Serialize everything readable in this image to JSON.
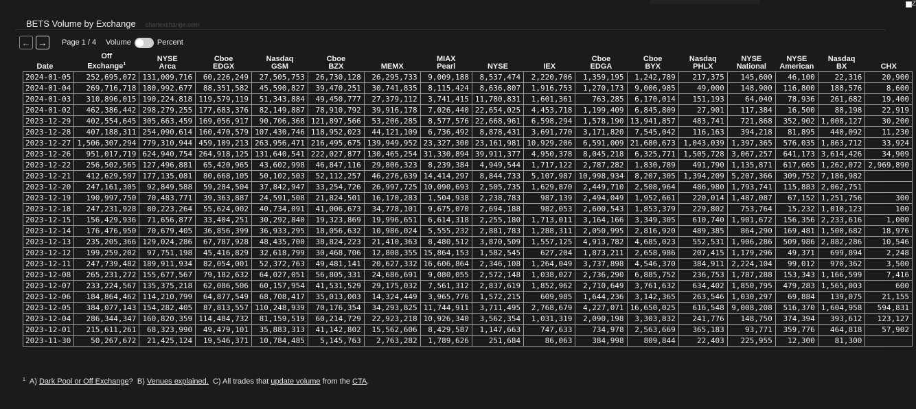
{
  "title": "BETS Volume by Exchange",
  "source": "chartexchange.com",
  "corner_label": "Z",
  "controls": {
    "page_label": "Page 1 / 4",
    "volume_label": "Volume",
    "percent_label": "Percent"
  },
  "columns": [
    {
      "l1": "",
      "l2": "Date"
    },
    {
      "l1": "Off",
      "l2": "Exchange",
      "sup": "1"
    },
    {
      "l1": "NYSE",
      "l2": "Arca"
    },
    {
      "l1": "Cboe",
      "l2": "EDGX"
    },
    {
      "l1": "Nasdaq",
      "l2": "GSM"
    },
    {
      "l1": "Cboe",
      "l2": "BZX"
    },
    {
      "l1": "",
      "l2": "MEMX"
    },
    {
      "l1": "MIAX",
      "l2": "Pearl"
    },
    {
      "l1": "",
      "l2": "NYSE"
    },
    {
      "l1": "",
      "l2": "IEX"
    },
    {
      "l1": "Cboe",
      "l2": "EDGA"
    },
    {
      "l1": "Cboe",
      "l2": "BYX"
    },
    {
      "l1": "Nasdaq",
      "l2": "PHLX"
    },
    {
      "l1": "NYSE",
      "l2": "National"
    },
    {
      "l1": "NYSE",
      "l2": "American"
    },
    {
      "l1": "Nasdaq",
      "l2": "BX"
    },
    {
      "l1": "",
      "l2": "CHX"
    }
  ],
  "rows": [
    [
      "2024-01-05",
      "252,695,072",
      "131,009,716",
      "60,226,249",
      "27,505,753",
      "26,730,128",
      "26,295,733",
      "9,009,188",
      "8,537,474",
      "2,220,706",
      "1,359,195",
      "1,242,789",
      "217,375",
      "145,600",
      "46,100",
      "22,316",
      "20,900"
    ],
    [
      "2024-01-04",
      "269,716,718",
      "180,992,677",
      "88,351,582",
      "45,590,827",
      "39,470,251",
      "30,741,835",
      "8,115,424",
      "8,636,807",
      "1,916,753",
      "1,270,173",
      "9,006,985",
      "49,000",
      "148,900",
      "116,800",
      "188,576",
      "8,600"
    ],
    [
      "2024-01-03",
      "310,896,015",
      "190,224,818",
      "119,579,119",
      "51,343,884",
      "49,450,777",
      "27,379,112",
      "3,741,415",
      "11,780,831",
      "1,601,361",
      "763,285",
      "6,170,014",
      "151,193",
      "64,040",
      "78,936",
      "261,682",
      "19,400"
    ],
    [
      "2024-01-02",
      "462,386,442",
      "298,279,255",
      "177,683,376",
      "82,149,887",
      "78,910,792",
      "39,916,178",
      "7,026,440",
      "22,654,025",
      "4,453,718",
      "1,199,409",
      "6,845,809",
      "27,901",
      "117,384",
      "16,500",
      "88,198",
      "22,919"
    ],
    [
      "2023-12-29",
      "402,554,645",
      "305,663,459",
      "169,056,917",
      "90,706,368",
      "121,897,566",
      "53,206,285",
      "8,577,576",
      "22,668,961",
      "6,598,294",
      "1,578,190",
      "13,941,857",
      "483,741",
      "721,868",
      "352,902",
      "1,008,127",
      "30,200"
    ],
    [
      "2023-12-28",
      "407,188,311",
      "254,090,614",
      "160,470,579",
      "107,430,746",
      "118,952,023",
      "44,121,109",
      "6,736,492",
      "8,878,431",
      "3,691,770",
      "3,171,820",
      "7,545,042",
      "116,163",
      "394,218",
      "81,895",
      "440,092",
      "11,230"
    ],
    [
      "2023-12-27",
      "1,506,307,294",
      "779,310,944",
      "459,109,213",
      "263,956,471",
      "216,495,675",
      "139,949,952",
      "23,327,300",
      "23,161,981",
      "10,929,206",
      "6,591,009",
      "21,680,673",
      "1,043,039",
      "1,397,365",
      "576,035",
      "1,863,712",
      "33,924"
    ],
    [
      "2023-12-26",
      "951,017,719",
      "624,940,754",
      "264,918,125",
      "131,640,541",
      "222,027,877",
      "130,465,254",
      "31,330,894",
      "39,911,377",
      "4,950,378",
      "8,045,218",
      "6,325,771",
      "1,505,728",
      "3,067,257",
      "641,173",
      "3,614,426",
      "34,909"
    ],
    [
      "2023-12-22",
      "256,502,565",
      "127,496,881",
      "65,420,965",
      "43,602,998",
      "46,847,116",
      "29,806,323",
      "8,239,384",
      "4,949,544",
      "1,717,122",
      "2,787,282",
      "1,830,789",
      "491,790",
      "1,135,871",
      "617,665",
      "1,262,072",
      "2,969,890"
    ],
    [
      "2023-12-21",
      "412,629,597",
      "177,135,081",
      "80,668,105",
      "50,102,503",
      "52,112,257",
      "46,276,639",
      "14,414,297",
      "8,844,733",
      "5,107,987",
      "10,998,934",
      "8,207,305",
      "1,394,209",
      "5,207,366",
      "309,752",
      "7,186,982",
      ""
    ],
    [
      "2023-12-20",
      "247,161,305",
      "92,849,588",
      "59,284,504",
      "37,842,947",
      "33,254,726",
      "26,997,725",
      "10,090,693",
      "2,505,735",
      "1,629,870",
      "2,449,710",
      "2,508,964",
      "486,980",
      "1,793,741",
      "115,883",
      "2,062,751",
      ""
    ],
    [
      "2023-12-19",
      "190,997,750",
      "70,483,771",
      "39,363,887",
      "24,591,508",
      "21,824,501",
      "16,170,283",
      "1,504,938",
      "2,238,783",
      "987,139",
      "2,494,049",
      "1,952,661",
      "220,014",
      "1,487,087",
      "67,152",
      "1,251,756",
      "300"
    ],
    [
      "2023-12-18",
      "247,231,928",
      "80,223,264",
      "55,624,002",
      "40,734,091",
      "41,006,673",
      "34,778,101",
      "9,675,070",
      "2,694,188",
      "982,053",
      "2,600,543",
      "1,853,379",
      "229,802",
      "753,764",
      "15,232",
      "1,010,123",
      "100"
    ],
    [
      "2023-12-15",
      "156,429,936",
      "71,656,877",
      "33,404,251",
      "30,292,840",
      "19,323,869",
      "19,996,651",
      "6,614,318",
      "2,255,180",
      "1,713,011",
      "3,164,166",
      "3,349,305",
      "610,740",
      "1,901,672",
      "156,356",
      "2,233,616",
      "1,000"
    ],
    [
      "2023-12-14",
      "176,476,950",
      "70,679,405",
      "36,856,399",
      "36,933,295",
      "18,056,632",
      "10,986,024",
      "5,555,232",
      "2,881,783",
      "1,288,311",
      "2,050,995",
      "2,816,920",
      "489,385",
      "864,290",
      "169,481",
      "1,500,682",
      "18,976"
    ],
    [
      "2023-12-13",
      "235,205,366",
      "129,024,286",
      "67,787,928",
      "48,435,700",
      "38,824,223",
      "21,410,363",
      "8,480,512",
      "3,870,509",
      "1,557,125",
      "4,913,782",
      "4,685,023",
      "552,531",
      "1,906,286",
      "509,986",
      "2,882,286",
      "10,546"
    ],
    [
      "2023-12-12",
      "199,259,202",
      "97,751,198",
      "45,416,829",
      "32,618,799",
      "30,468,706",
      "12,808,355",
      "15,864,153",
      "1,582,545",
      "627,204",
      "1,873,211",
      "2,658,986",
      "207,415",
      "1,179,296",
      "49,371",
      "699,894",
      "2,248"
    ],
    [
      "2023-12-11",
      "247,739,482",
      "189,911,934",
      "82,054,001",
      "52,372,763",
      "49,481,141",
      "20,627,332",
      "16,606,864",
      "2,346,108",
      "1,264,049",
      "3,737,898",
      "4,546,370",
      "384,911",
      "2,224,104",
      "99,012",
      "970,362",
      "3,500"
    ],
    [
      "2023-12-08",
      "265,231,272",
      "155,677,567",
      "79,182,632",
      "64,027,051",
      "56,805,331",
      "24,686,691",
      "9,080,055",
      "2,572,148",
      "1,038,027",
      "2,736,290",
      "6,885,752",
      "236,753",
      "1,787,288",
      "153,343",
      "1,166,599",
      "7,416"
    ],
    [
      "2023-12-07",
      "233,224,567",
      "135,375,218",
      "62,086,506",
      "60,157,954",
      "41,531,529",
      "29,175,032",
      "7,561,312",
      "2,837,619",
      "1,852,962",
      "2,710,649",
      "3,761,632",
      "634,402",
      "1,850,795",
      "479,283",
      "1,565,003",
      "600"
    ],
    [
      "2023-12-06",
      "184,864,462",
      "114,210,799",
      "64,877,549",
      "68,708,417",
      "35,013,003",
      "14,324,449",
      "3,965,776",
      "1,572,215",
      "609,985",
      "1,644,236",
      "3,142,365",
      "263,546",
      "1,030,297",
      "69,884",
      "139,075",
      "21,155"
    ],
    [
      "2023-12-05",
      "384,077,143",
      "154,282,405",
      "87,813,557",
      "110,248,939",
      "70,176,354",
      "34,293,825",
      "11,744,911",
      "3,711,495",
      "2,768,679",
      "4,227,071",
      "16,650,025",
      "616,548",
      "9,008,208",
      "516,370",
      "1,604,958",
      "594,831"
    ],
    [
      "2023-12-04",
      "286,344,347",
      "160,820,359",
      "114,484,732",
      "81,159,519",
      "60,214,729",
      "22,923,218",
      "10,926,340",
      "3,562,354",
      "1,031,319",
      "2,090,198",
      "3,303,832",
      "241,776",
      "148,750",
      "374,394",
      "393,612",
      "123,127"
    ],
    [
      "2023-12-01",
      "215,611,261",
      "68,323,990",
      "49,479,101",
      "35,883,313",
      "41,142,802",
      "15,562,606",
      "8,429,587",
      "1,147,663",
      "747,633",
      "734,978",
      "2,563,669",
      "365,183",
      "93,771",
      "359,776",
      "464,818",
      "57,902"
    ],
    [
      "2023-11-30",
      "50,267,672",
      "21,425,124",
      "19,546,371",
      "10,784,485",
      "5,145,763",
      "2,763,282",
      "1,789,626",
      "251,684",
      "86,063",
      "384,998",
      "809,844",
      "22,403",
      "225,955",
      "12,300",
      "81,300",
      ""
    ]
  ],
  "footnote": {
    "marker": "1",
    "a_prefix": "A)",
    "a_link": "Dark Pool or Off Exchange",
    "a_suffix": "?",
    "b_prefix": "B)",
    "b_link": "Venues explained.",
    "c_prefix": "C) All trades that",
    "c_link": "update volume",
    "c_mid": "from the",
    "c_link2": "CTA",
    "c_end": "."
  }
}
